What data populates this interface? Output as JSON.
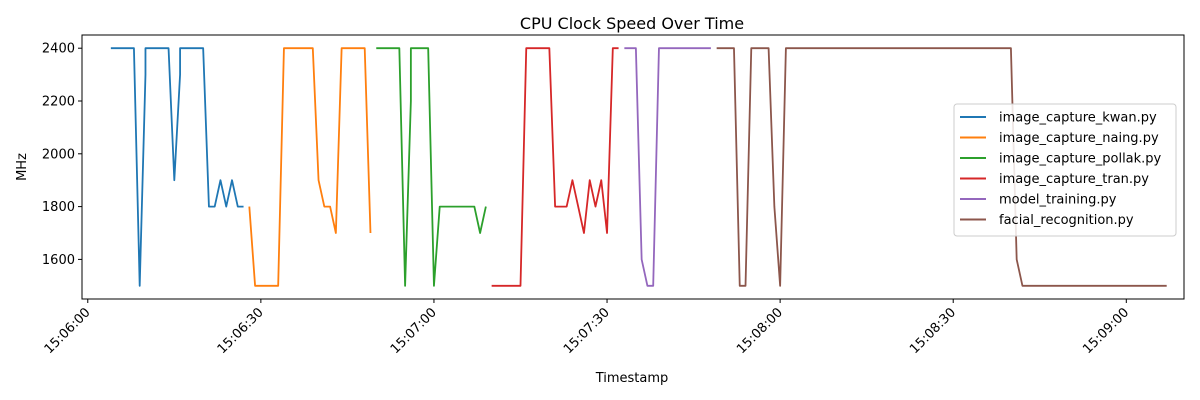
{
  "chart_data": {
    "type": "line",
    "title": "CPU Clock Speed Over Time",
    "xlabel": "Timestamp",
    "ylabel": "MHz",
    "xlim": [
      "15:05:59",
      "15:09:10"
    ],
    "ylim": [
      1450,
      2450
    ],
    "x_ticks": [
      "15:06:00",
      "15:06:30",
      "15:07:00",
      "15:07:30",
      "15:08:00",
      "15:08:30",
      "15:09:00"
    ],
    "y_ticks": [
      1600,
      1800,
      2000,
      2200,
      2400
    ],
    "grid": false,
    "legend_position": "right",
    "series": [
      {
        "name": "image_capture_kwan.py",
        "color": "#1f77b4",
        "points": [
          [
            "15:06:04",
            2400
          ],
          [
            "15:06:08",
            2400
          ],
          [
            "15:06:09",
            1500
          ],
          [
            "15:06:10",
            2300
          ],
          [
            "15:06:10",
            2400
          ],
          [
            "15:06:14",
            2400
          ],
          [
            "15:06:15",
            1900
          ],
          [
            "15:06:16",
            2300
          ],
          [
            "15:06:16",
            2400
          ],
          [
            "15:06:20",
            2400
          ],
          [
            "15:06:21",
            1800
          ],
          [
            "15:06:22",
            1800
          ],
          [
            "15:06:23",
            1900
          ],
          [
            "15:06:24",
            1800
          ],
          [
            "15:06:25",
            1900
          ],
          [
            "15:06:26",
            1800
          ],
          [
            "15:06:27",
            1800
          ]
        ]
      },
      {
        "name": "image_capture_naing.py",
        "color": "#ff7f0e",
        "points": [
          [
            "15:06:28",
            1800
          ],
          [
            "15:06:29",
            1500
          ],
          [
            "15:06:33",
            1500
          ],
          [
            "15:06:34",
            2400
          ],
          [
            "15:06:39",
            2400
          ],
          [
            "15:06:40",
            1900
          ],
          [
            "15:06:41",
            1800
          ],
          [
            "15:06:42",
            1800
          ],
          [
            "15:06:43",
            1700
          ],
          [
            "15:06:44",
            2400
          ],
          [
            "15:06:48",
            2400
          ],
          [
            "15:06:49",
            1700
          ]
        ]
      },
      {
        "name": "image_capture_pollak.py",
        "color": "#2ca02c",
        "points": [
          [
            "15:06:50",
            2400
          ],
          [
            "15:06:54",
            2400
          ],
          [
            "15:06:55",
            1500
          ],
          [
            "15:06:56",
            2200
          ],
          [
            "15:06:56",
            2400
          ],
          [
            "15:06:59",
            2400
          ],
          [
            "15:07:00",
            1500
          ],
          [
            "15:07:01",
            1800
          ],
          [
            "15:07:07",
            1800
          ],
          [
            "15:07:08",
            1700
          ],
          [
            "15:07:09",
            1800
          ]
        ]
      },
      {
        "name": "image_capture_tran.py",
        "color": "#d62728",
        "points": [
          [
            "15:07:10",
            1500
          ],
          [
            "15:07:15",
            1500
          ],
          [
            "15:07:16",
            2400
          ],
          [
            "15:07:20",
            2400
          ],
          [
            "15:07:21",
            1800
          ],
          [
            "15:07:23",
            1800
          ],
          [
            "15:07:24",
            1900
          ],
          [
            "15:07:25",
            1800
          ],
          [
            "15:07:26",
            1700
          ],
          [
            "15:07:27",
            1900
          ],
          [
            "15:07:28",
            1800
          ],
          [
            "15:07:29",
            1900
          ],
          [
            "15:07:30",
            1700
          ],
          [
            "15:07:31",
            2400
          ],
          [
            "15:07:32",
            2400
          ]
        ]
      },
      {
        "name": "model_training.py",
        "color": "#9467bd",
        "points": [
          [
            "15:07:33",
            2400
          ],
          [
            "15:07:35",
            2400
          ],
          [
            "15:07:36",
            1600
          ],
          [
            "15:07:37",
            1500
          ],
          [
            "15:07:38",
            1500
          ],
          [
            "15:07:39",
            2400
          ],
          [
            "15:07:48",
            2400
          ]
        ]
      },
      {
        "name": "facial_recognition.py",
        "color": "#8c564b",
        "points": [
          [
            "15:07:49",
            2400
          ],
          [
            "15:07:52",
            2400
          ],
          [
            "15:07:53",
            1500
          ],
          [
            "15:07:54",
            1500
          ],
          [
            "15:07:55",
            2400
          ],
          [
            "15:07:58",
            2400
          ],
          [
            "15:07:59",
            1800
          ],
          [
            "15:08:00",
            1500
          ],
          [
            "15:08:01",
            2400
          ],
          [
            "15:08:40",
            2400
          ],
          [
            "15:08:41",
            1600
          ],
          [
            "15:08:42",
            1500
          ],
          [
            "15:09:07",
            1500
          ]
        ]
      }
    ]
  }
}
